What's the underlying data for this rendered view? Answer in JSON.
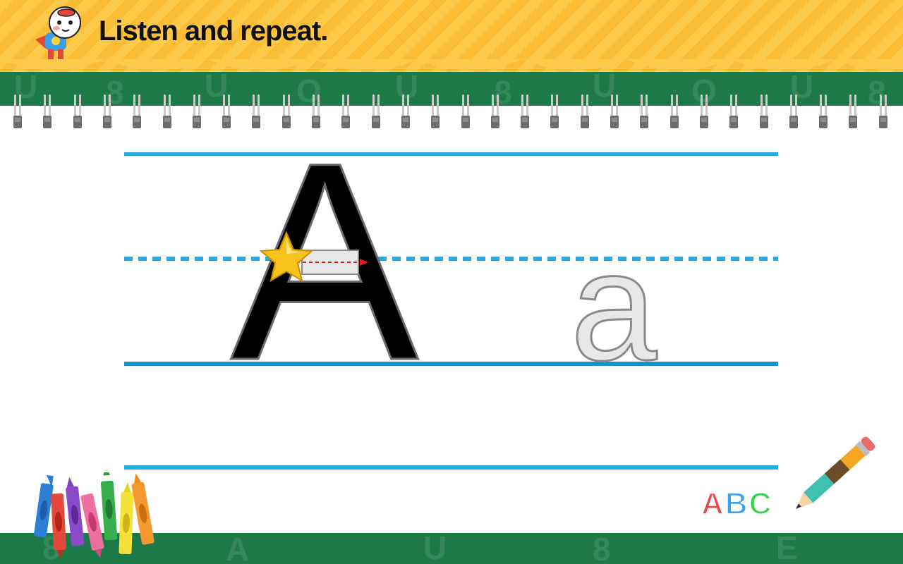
{
  "header": {
    "instruction": "Listen and repeat."
  },
  "lesson": {
    "uppercase_letter": "A",
    "lowercase_letter": "a"
  },
  "decor": {
    "abc": [
      "A",
      "B",
      "C"
    ]
  },
  "colors": {
    "header_yellow": "#ffc94a",
    "board_green": "#1d7a48",
    "guide_line_blue": "#27a9e1",
    "letter_fill": "#000000",
    "trace_letter_fill": "#e8e8e8",
    "trace_arrow_red": "#e41e1e",
    "star_gold": "#f7c21b"
  },
  "icons": [
    "mascot-icon",
    "star-icon",
    "crayons-icon",
    "pencil-icon"
  ]
}
